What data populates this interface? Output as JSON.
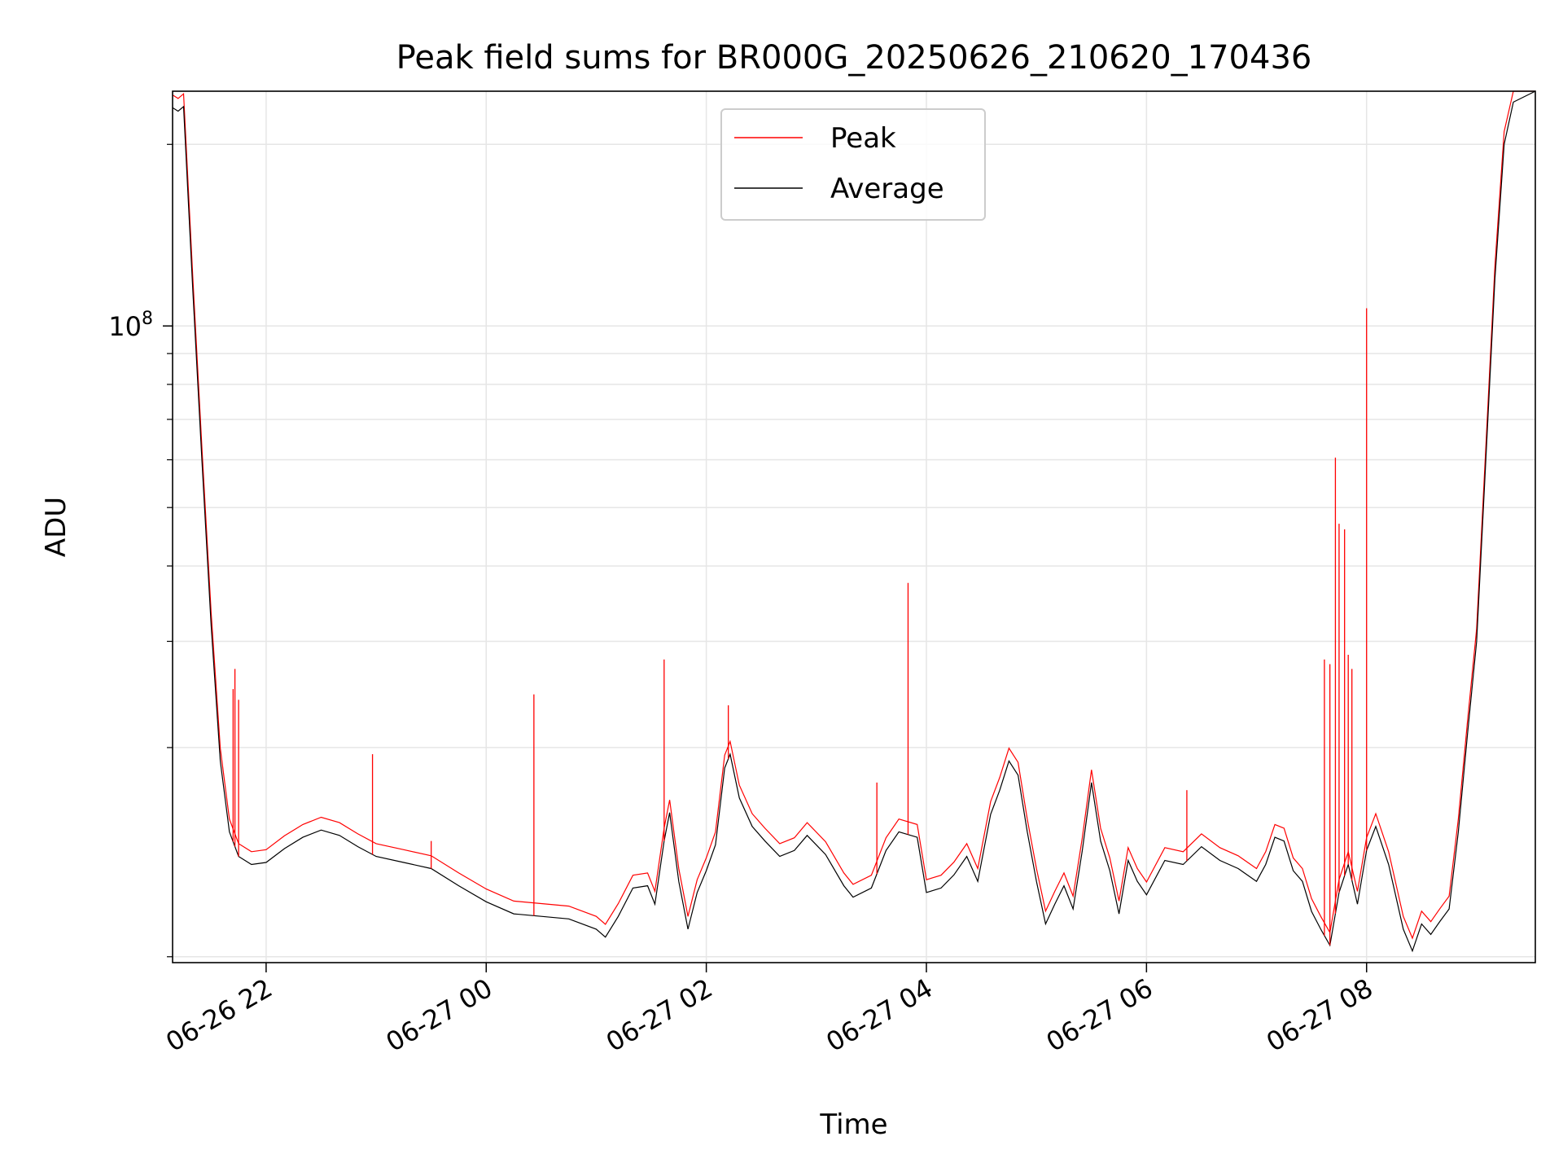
{
  "chart_data": {
    "type": "line",
    "title": "Peak field sums for BR000G_20250626_210620_170436",
    "xlabel": "Time",
    "ylabel": "ADU",
    "y_scale": "log",
    "ylim": [
      8800000,
      245000000
    ],
    "y_major_tick": {
      "value": 100000000,
      "base": "10",
      "exp": "8"
    },
    "y_minor_ticks": [
      9000000,
      20000000,
      30000000,
      40000000,
      50000000,
      60000000,
      70000000,
      80000000,
      90000000,
      200000000
    ],
    "xlim": [
      "2025-06-26 21:09",
      "2025-06-27 09:32"
    ],
    "x_ticks": [
      {
        "t": "2025-06-26 22:00",
        "label": "06-26 22"
      },
      {
        "t": "2025-06-27 00:00",
        "label": "06-27 00"
      },
      {
        "t": "2025-06-27 02:00",
        "label": "06-27 02"
      },
      {
        "t": "2025-06-27 04:00",
        "label": "06-27 04"
      },
      {
        "t": "2025-06-27 06:00",
        "label": "06-27 06"
      },
      {
        "t": "2025-06-27 08:00",
        "label": "06-27 08"
      }
    ],
    "grid": true,
    "legend_position": "upper center",
    "series": [
      {
        "name": "Peak",
        "color": "#ff0000"
      },
      {
        "name": "Average",
        "color": "#000000"
      }
    ],
    "average_points": [
      [
        "2025-06-26 21:09",
        230000000
      ],
      [
        "2025-06-26 21:12",
        227000000
      ],
      [
        "2025-06-26 21:15",
        231000000
      ],
      [
        "2025-06-26 21:20",
        115000000
      ],
      [
        "2025-06-26 21:25",
        60000000
      ],
      [
        "2025-06-26 21:30",
        32000000
      ],
      [
        "2025-06-26 21:35",
        19000000
      ],
      [
        "2025-06-26 21:40",
        14500000
      ],
      [
        "2025-06-26 21:45",
        13200000
      ],
      [
        "2025-06-26 21:52",
        12800000
      ],
      [
        "2025-06-26 22:00",
        12900000
      ],
      [
        "2025-06-26 22:10",
        13600000
      ],
      [
        "2025-06-26 22:20",
        14200000
      ],
      [
        "2025-06-26 22:30",
        14600000
      ],
      [
        "2025-06-26 22:40",
        14300000
      ],
      [
        "2025-06-26 22:50",
        13700000
      ],
      [
        "2025-06-26 23:00",
        13200000
      ],
      [
        "2025-06-26 23:15",
        12900000
      ],
      [
        "2025-06-26 23:30",
        12600000
      ],
      [
        "2025-06-26 23:45",
        11800000
      ],
      [
        "2025-06-27 00:00",
        11100000
      ],
      [
        "2025-06-27 00:15",
        10600000
      ],
      [
        "2025-06-27 00:30",
        10500000
      ],
      [
        "2025-06-27 00:45",
        10400000
      ],
      [
        "2025-06-27 01:00",
        10000000
      ],
      [
        "2025-06-27 01:05",
        9700000
      ],
      [
        "2025-06-27 01:12",
        10500000
      ],
      [
        "2025-06-27 01:20",
        11700000
      ],
      [
        "2025-06-27 01:28",
        11800000
      ],
      [
        "2025-06-27 01:32",
        11000000
      ],
      [
        "2025-06-27 01:37",
        14000000
      ],
      [
        "2025-06-27 01:40",
        15600000
      ],
      [
        "2025-06-27 01:45",
        12000000
      ],
      [
        "2025-06-27 01:50",
        10000000
      ],
      [
        "2025-06-27 01:55",
        11500000
      ],
      [
        "2025-06-27 02:00",
        12500000
      ],
      [
        "2025-06-27 02:05",
        13800000
      ],
      [
        "2025-06-27 02:10",
        18500000
      ],
      [
        "2025-06-27 02:13",
        19500000
      ],
      [
        "2025-06-27 02:18",
        16500000
      ],
      [
        "2025-06-27 02:25",
        14800000
      ],
      [
        "2025-06-27 02:32",
        14000000
      ],
      [
        "2025-06-27 02:40",
        13200000
      ],
      [
        "2025-06-27 02:48",
        13500000
      ],
      [
        "2025-06-27 02:55",
        14300000
      ],
      [
        "2025-06-27 03:05",
        13300000
      ],
      [
        "2025-06-27 03:15",
        11800000
      ],
      [
        "2025-06-27 03:20",
        11300000
      ],
      [
        "2025-06-27 03:30",
        11700000
      ],
      [
        "2025-06-27 03:38",
        13500000
      ],
      [
        "2025-06-27 03:45",
        14500000
      ],
      [
        "2025-06-27 03:55",
        14200000
      ],
      [
        "2025-06-27 04:00",
        11500000
      ],
      [
        "2025-06-27 04:08",
        11700000
      ],
      [
        "2025-06-27 04:15",
        12300000
      ],
      [
        "2025-06-27 04:22",
        13200000
      ],
      [
        "2025-06-27 04:28",
        12000000
      ],
      [
        "2025-06-27 04:35",
        15500000
      ],
      [
        "2025-06-27 04:40",
        17000000
      ],
      [
        "2025-06-27 04:45",
        19000000
      ],
      [
        "2025-06-27 04:50",
        18000000
      ],
      [
        "2025-06-27 04:55",
        14500000
      ],
      [
        "2025-06-27 05:00",
        12000000
      ],
      [
        "2025-06-27 05:05",
        10200000
      ],
      [
        "2025-06-27 05:10",
        11000000
      ],
      [
        "2025-06-27 05:15",
        11800000
      ],
      [
        "2025-06-27 05:20",
        10800000
      ],
      [
        "2025-06-27 05:25",
        13500000
      ],
      [
        "2025-06-27 05:30",
        17500000
      ],
      [
        "2025-06-27 05:35",
        14000000
      ],
      [
        "2025-06-27 05:40",
        12500000
      ],
      [
        "2025-06-27 05:45",
        10600000
      ],
      [
        "2025-06-27 05:50",
        13000000
      ],
      [
        "2025-06-27 05:55",
        12000000
      ],
      [
        "2025-06-27 06:00",
        11400000
      ],
      [
        "2025-06-27 06:10",
        13000000
      ],
      [
        "2025-06-27 06:20",
        12800000
      ],
      [
        "2025-06-27 06:30",
        13700000
      ],
      [
        "2025-06-27 06:40",
        13000000
      ],
      [
        "2025-06-27 06:50",
        12600000
      ],
      [
        "2025-06-27 07:00",
        12000000
      ],
      [
        "2025-06-27 07:05",
        12800000
      ],
      [
        "2025-06-27 07:10",
        14200000
      ],
      [
        "2025-06-27 07:15",
        14000000
      ],
      [
        "2025-06-27 07:20",
        12500000
      ],
      [
        "2025-06-27 07:25",
        12000000
      ],
      [
        "2025-06-27 07:30",
        10700000
      ],
      [
        "2025-06-27 07:35",
        10000000
      ],
      [
        "2025-06-27 07:40",
        9400000
      ],
      [
        "2025-06-27 07:45",
        11500000
      ],
      [
        "2025-06-27 07:50",
        12800000
      ],
      [
        "2025-06-27 07:55",
        11000000
      ],
      [
        "2025-06-27 08:00",
        13500000
      ],
      [
        "2025-06-27 08:05",
        14800000
      ],
      [
        "2025-06-27 08:12",
        12800000
      ],
      [
        "2025-06-27 08:20",
        10000000
      ],
      [
        "2025-06-27 08:25",
        9200000
      ],
      [
        "2025-06-27 08:30",
        10200000
      ],
      [
        "2025-06-27 08:35",
        9800000
      ],
      [
        "2025-06-27 08:40",
        10300000
      ],
      [
        "2025-06-27 08:45",
        10800000
      ],
      [
        "2025-06-27 08:50",
        14500000
      ],
      [
        "2025-06-27 08:55",
        21000000
      ],
      [
        "2025-06-27 09:00",
        30000000
      ],
      [
        "2025-06-27 09:05",
        60000000
      ],
      [
        "2025-06-27 09:10",
        120000000
      ],
      [
        "2025-06-27 09:15",
        200000000
      ],
      [
        "2025-06-27 09:20",
        235000000
      ],
      [
        "2025-06-27 09:32",
        248000000
      ]
    ],
    "peak_offset_factor": 1.05,
    "peak_spikes": [
      [
        "2025-06-26 21:42",
        25000000
      ],
      [
        "2025-06-26 21:43",
        27000000
      ],
      [
        "2025-06-26 21:45",
        24000000
      ],
      [
        "2025-06-26 22:58",
        19500000
      ],
      [
        "2025-06-26 23:30",
        14000000
      ],
      [
        "2025-06-27 00:26",
        24500000
      ],
      [
        "2025-06-27 01:37",
        28000000
      ],
      [
        "2025-06-27 02:12",
        23500000
      ],
      [
        "2025-06-27 03:33",
        17500000
      ],
      [
        "2025-06-27 03:50",
        37500000
      ],
      [
        "2025-06-27 06:22",
        17000000
      ],
      [
        "2025-06-27 07:37",
        28000000
      ],
      [
        "2025-06-27 07:40",
        27500000
      ],
      [
        "2025-06-27 07:43",
        60500000
      ],
      [
        "2025-06-27 07:45",
        47000000
      ],
      [
        "2025-06-27 07:48",
        46000000
      ],
      [
        "2025-06-27 07:50",
        28500000
      ],
      [
        "2025-06-27 07:52",
        27000000
      ],
      [
        "2025-06-27 08:00",
        107000000
      ]
    ]
  }
}
